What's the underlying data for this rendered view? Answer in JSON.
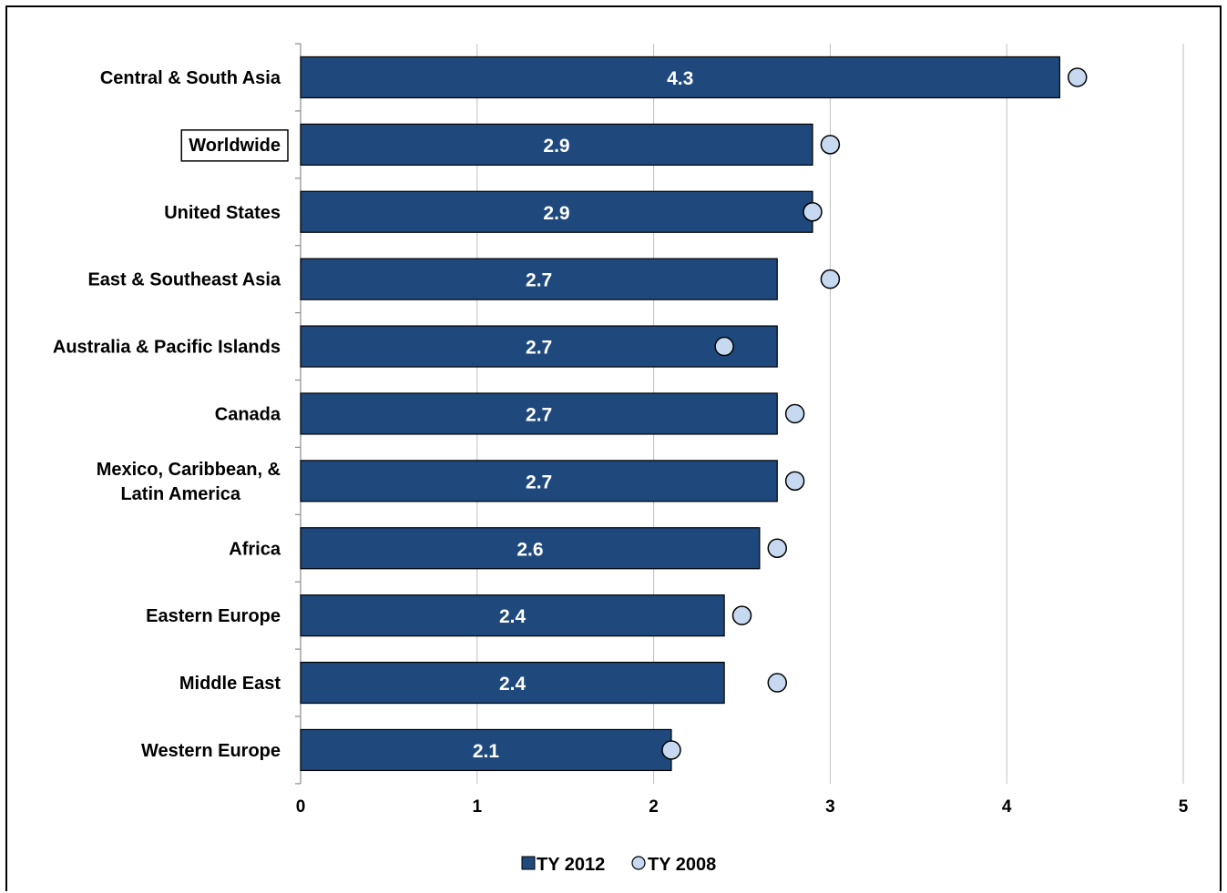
{
  "chart_data": {
    "type": "bar",
    "orientation": "horizontal",
    "categories": [
      "Central & South Asia",
      "Worldwide",
      "United States",
      "East & Southeast Asia",
      "Australia & Pacific Islands",
      "Canada",
      "Mexico, Caribbean, & Latin America",
      "Africa",
      "Eastern Europe",
      "Middle East",
      "Western Europe"
    ],
    "highlighted_category": "Worldwide",
    "series": [
      {
        "name": "TY 2012",
        "type": "bar",
        "color": "#1f497d",
        "values": [
          4.3,
          2.9,
          2.9,
          2.7,
          2.7,
          2.7,
          2.7,
          2.6,
          2.4,
          2.4,
          2.1
        ],
        "data_labels": [
          "4.3",
          "2.9",
          "2.9",
          "2.7",
          "2.7",
          "2.7",
          "2.7",
          "2.6",
          "2.4",
          "2.4",
          "2.1"
        ]
      },
      {
        "name": "TY 2008",
        "type": "marker",
        "color": "#c6d9f1",
        "values": [
          4.4,
          3.0,
          2.9,
          3.0,
          2.4,
          2.8,
          2.8,
          2.7,
          2.5,
          2.7,
          2.1
        ]
      }
    ],
    "xlim": [
      0,
      5
    ],
    "xticks": [
      "0",
      "1",
      "2",
      "3",
      "4",
      "5"
    ],
    "grid": "vertical",
    "legend_position": "bottom"
  }
}
